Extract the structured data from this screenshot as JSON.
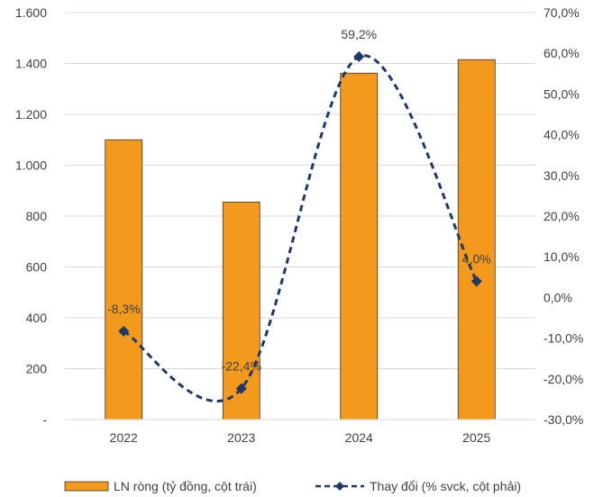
{
  "chart_data": {
    "type": "bar+line",
    "categories": [
      "2022",
      "2023",
      "2024",
      "2025"
    ],
    "series": [
      {
        "name": "LN ròng (tỷ đồng, cột trái)",
        "type": "bar",
        "axis": "left",
        "values": [
          1100,
          855,
          1362,
          1415
        ],
        "color": "#F39A1E"
      },
      {
        "name": "Thay đổi (% svck, cột phải)",
        "type": "line",
        "axis": "right",
        "values": [
          -8.3,
          -22.4,
          59.2,
          4.0
        ],
        "labels": [
          "-8,3%",
          "-22,4%",
          "59,2%",
          "4,0%"
        ],
        "color": "#1F3864",
        "style": "dashed-smooth",
        "marker": "diamond"
      }
    ],
    "y_left": {
      "ylim": [
        0,
        1600
      ],
      "ticks": [
        0,
        200,
        400,
        600,
        800,
        1000,
        1200,
        1400,
        1600
      ],
      "tick_labels": [
        "-",
        "200",
        "400",
        "600",
        "800",
        "1.000",
        "1.200",
        "1.400",
        "1.600"
      ]
    },
    "y_right": {
      "ylim": [
        -30,
        70
      ],
      "ticks": [
        -30,
        -20,
        -10,
        0,
        10,
        20,
        30,
        40,
        50,
        60,
        70
      ],
      "tick_labels": [
        "-30,0%",
        "-20,0%",
        "-10,0%",
        "0,0%",
        "10,0%",
        "20,0%",
        "30,0%",
        "40,0%",
        "50,0%",
        "60,0%",
        "70,0%"
      ]
    },
    "grid": true,
    "legend": "bottom"
  }
}
